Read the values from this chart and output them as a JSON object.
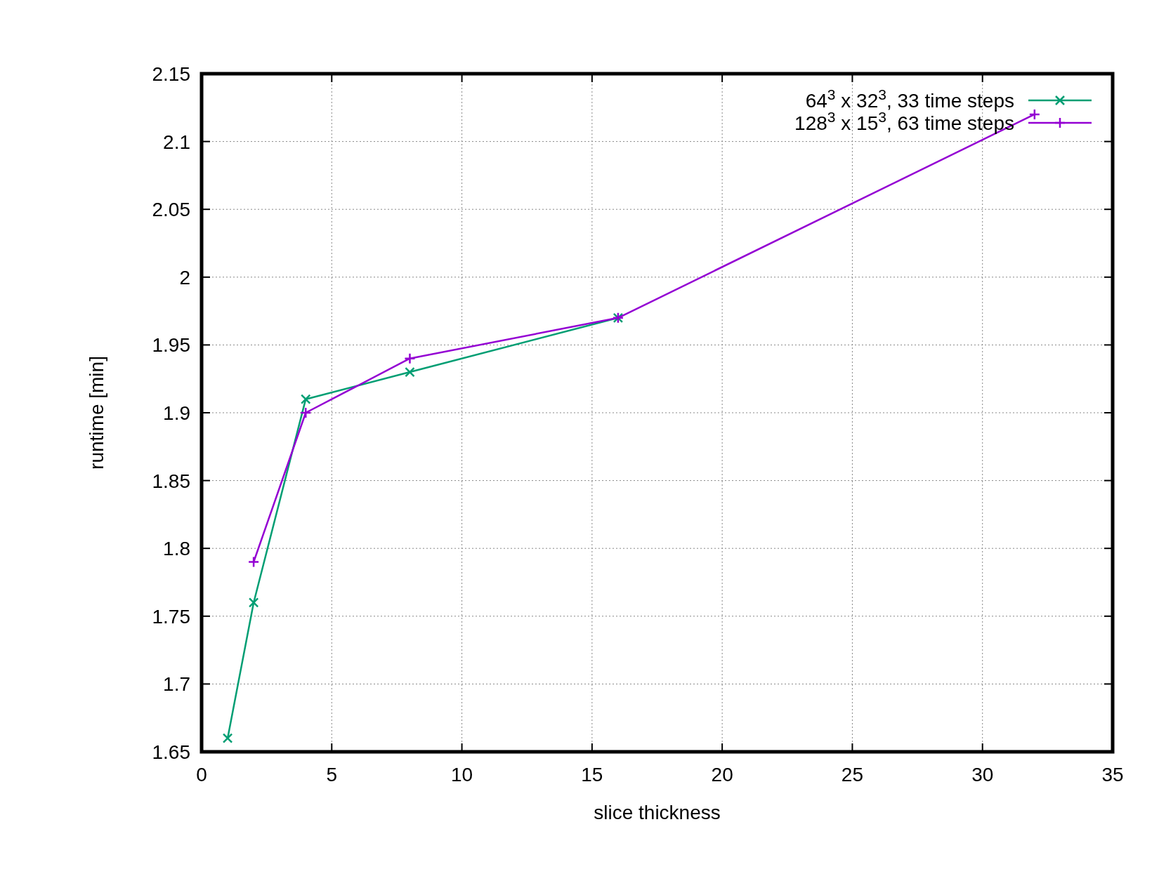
{
  "chart_data": {
    "type": "line",
    "xlabel": "slice thickness",
    "ylabel": "runtime [min]",
    "xlim": [
      0,
      35
    ],
    "xticks": [
      0,
      5,
      10,
      15,
      20,
      25,
      30,
      35
    ],
    "ylim": [
      1.65,
      2.15
    ],
    "yticks": [
      1.65,
      1.7,
      1.75,
      1.8,
      1.85,
      1.9,
      1.95,
      2,
      2.05,
      2.1,
      2.15
    ],
    "grid": true,
    "legend": "top right",
    "line_style": "solid",
    "series": [
      {
        "name": "64$^{3}$ x 32$^{3}$, 33 time steps",
        "color": "#009e73",
        "marker": "x",
        "x": [
          1,
          2,
          4,
          8,
          16
        ],
        "values": [
          1.66,
          1.76,
          1.91,
          1.93,
          1.97
        ]
      },
      {
        "name": "128$^{3}$ x 15$^{3}$, 63 time steps",
        "color": "#9400d3",
        "marker": "cross",
        "x": [
          2,
          4,
          8,
          16,
          32
        ],
        "values": [
          1.79,
          1.9,
          1.94,
          1.97,
          2.12
        ]
      }
    ]
  }
}
